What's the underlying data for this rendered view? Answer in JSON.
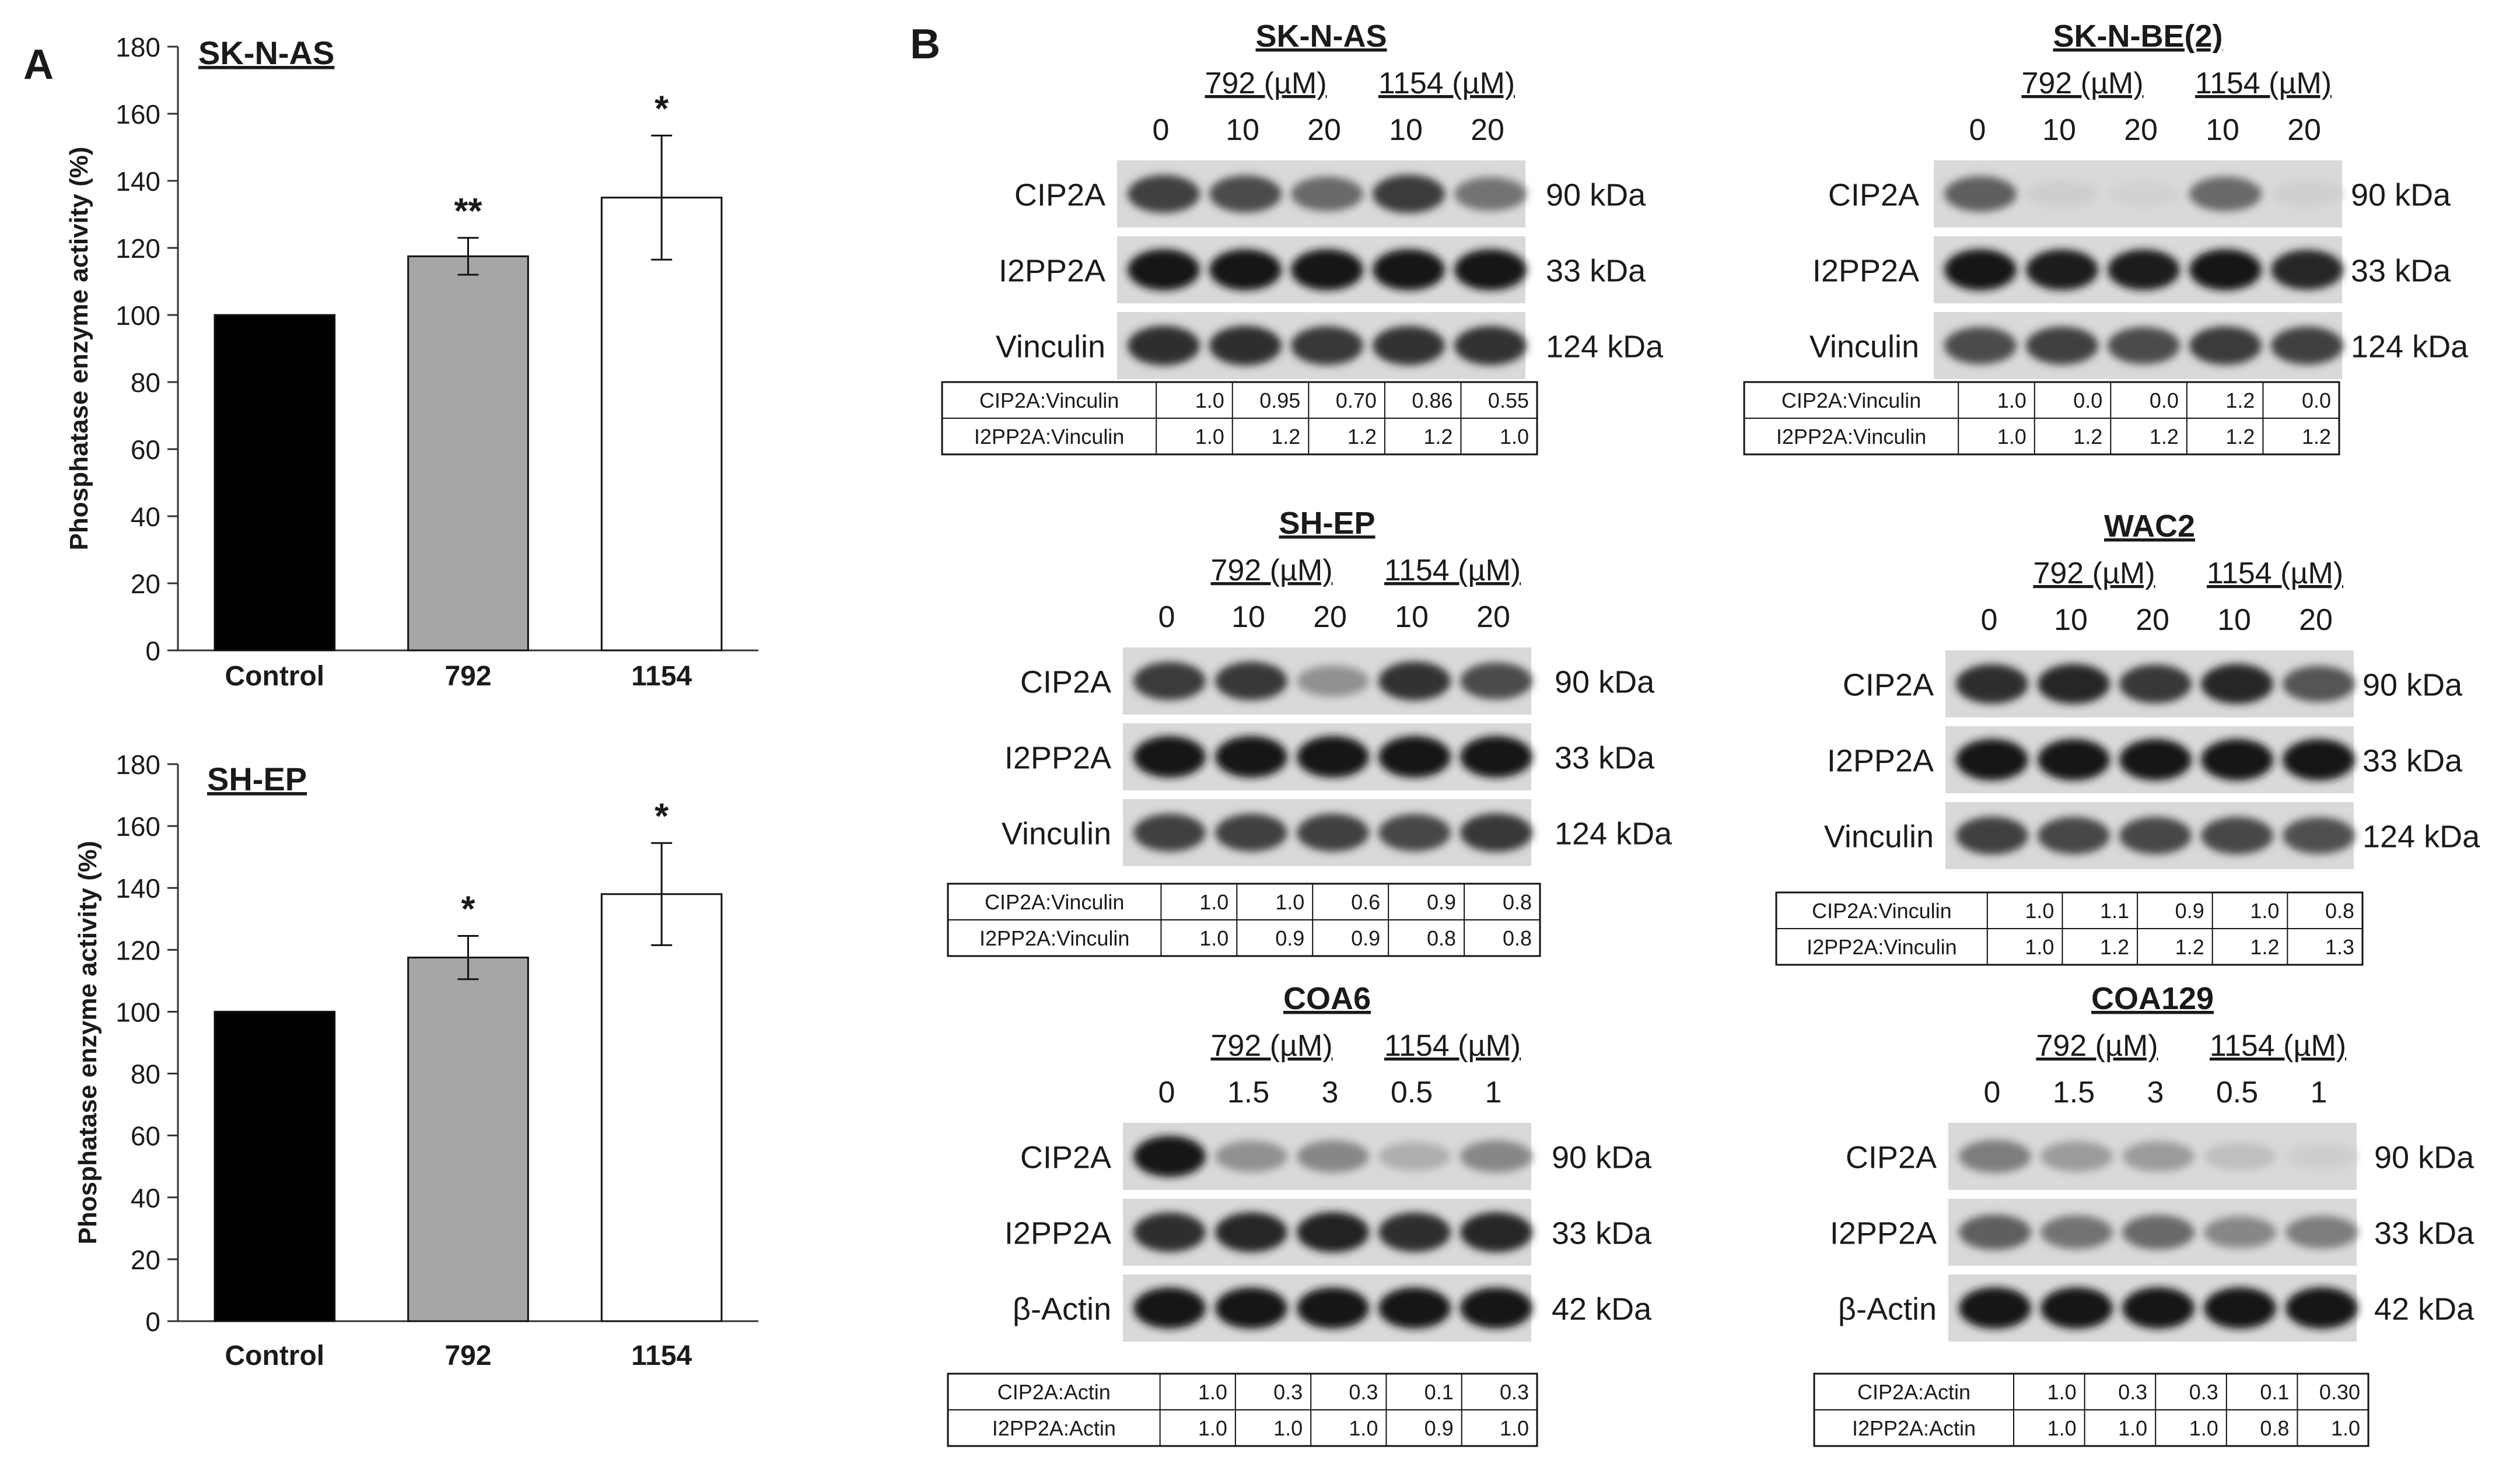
{
  "panel_a": {
    "label": "A"
  },
  "panel_b": {
    "label": "B"
  },
  "chart_data": [
    {
      "type": "bar",
      "title": "SK-N-AS",
      "ylabel": "Phosphatase enzyme activity (%)",
      "xlabel": "",
      "categories": [
        "Control",
        "792",
        "1154"
      ],
      "values": [
        100,
        117.5,
        135
      ],
      "errors": [
        0.5,
        5.5,
        18.5
      ],
      "significance": [
        "",
        "**",
        "*"
      ],
      "bar_colors": [
        "#000000",
        "#a6a6a6",
        "#ffffff"
      ],
      "ylim": [
        0,
        180
      ],
      "yticks": [
        0,
        20,
        40,
        60,
        80,
        100,
        120,
        140,
        160,
        180
      ]
    },
    {
      "type": "bar",
      "title": "SH-EP",
      "ylabel": "Phosphatase enzyme activity (%)",
      "xlabel": "",
      "categories": [
        "Control",
        "792",
        "1154"
      ],
      "values": [
        100,
        117.5,
        138
      ],
      "errors": [
        0.5,
        7,
        16.5
      ],
      "significance": [
        "",
        "*",
        "*"
      ],
      "bar_colors": [
        "#000000",
        "#a6a6a6",
        "#ffffff"
      ],
      "ylim": [
        0,
        180
      ],
      "yticks": [
        0,
        20,
        40,
        60,
        80,
        100,
        120,
        140,
        160,
        180
      ]
    }
  ],
  "blots": [
    {
      "title": "SK-N-AS",
      "group_labels": [
        "792 (µM)",
        "1154 (µM)"
      ],
      "lanes": [
        "0",
        "10",
        "20",
        "10",
        "20"
      ],
      "rows": [
        {
          "protein": "CIP2A",
          "kda": "90 kDa",
          "intensity": [
            0.75,
            0.7,
            0.55,
            0.78,
            0.5
          ]
        },
        {
          "protein": "I2PP2A",
          "kda": "33 kDa",
          "intensity": [
            0.95,
            0.95,
            0.95,
            0.95,
            0.95
          ]
        },
        {
          "protein": "Vinculin",
          "kda": "124 kDa",
          "intensity": [
            0.85,
            0.85,
            0.8,
            0.82,
            0.82
          ]
        }
      ],
      "table": [
        {
          "label": "CIP2A:Vinculin",
          "values": [
            "1.0",
            "0.95",
            "0.70",
            "0.86",
            "0.55"
          ]
        },
        {
          "label": "I2PP2A:Vinculin",
          "values": [
            "1.0",
            "1.2",
            "1.2",
            "1.2",
            "1.0"
          ]
        }
      ]
    },
    {
      "title": "SK-N-BE(2)",
      "group_labels": [
        "792 (µM)",
        "1154 (µM)"
      ],
      "lanes": [
        "0",
        "10",
        "20",
        "10",
        "20"
      ],
      "rows": [
        {
          "protein": "CIP2A",
          "kda": "90 kDa",
          "intensity": [
            0.6,
            0.05,
            0.03,
            0.55,
            0.04
          ]
        },
        {
          "protein": "I2PP2A",
          "kda": "33 kDa",
          "intensity": [
            0.95,
            0.92,
            0.92,
            0.95,
            0.88
          ]
        },
        {
          "protein": "Vinculin",
          "kda": "124 kDa",
          "intensity": [
            0.7,
            0.75,
            0.7,
            0.78,
            0.75
          ]
        }
      ],
      "table": [
        {
          "label": "CIP2A:Vinculin",
          "values": [
            "1.0",
            "0.0",
            "0.0",
            "1.2",
            "0.0"
          ]
        },
        {
          "label": "I2PP2A:Vinculin",
          "values": [
            "1.0",
            "1.2",
            "1.2",
            "1.2",
            "1.2"
          ]
        }
      ]
    },
    {
      "title": "SH-EP",
      "group_labels": [
        "792 (µM)",
        "1154 (µM)"
      ],
      "lanes": [
        "0",
        "10",
        "20",
        "10",
        "20"
      ],
      "rows": [
        {
          "protein": "CIP2A",
          "kda": "90 kDa",
          "intensity": [
            0.78,
            0.8,
            0.35,
            0.82,
            0.7
          ]
        },
        {
          "protein": "I2PP2A",
          "kda": "33 kDa",
          "intensity": [
            0.98,
            0.98,
            0.98,
            0.98,
            0.98
          ]
        },
        {
          "protein": "Vinculin",
          "kda": "124 kDa",
          "intensity": [
            0.75,
            0.75,
            0.75,
            0.72,
            0.8
          ]
        }
      ],
      "table": [
        {
          "label": "CIP2A:Vinculin",
          "values": [
            "1.0",
            "1.0",
            "0.6",
            "0.9",
            "0.8"
          ]
        },
        {
          "label": "I2PP2A:Vinculin",
          "values": [
            "1.0",
            "0.9",
            "0.9",
            "0.8",
            "0.8"
          ]
        }
      ]
    },
    {
      "title": "WAC2",
      "group_labels": [
        "792 (µM)",
        "1154 (µM)"
      ],
      "lanes": [
        "0",
        "10",
        "20",
        "10",
        "20"
      ],
      "rows": [
        {
          "protein": "CIP2A",
          "kda": "90 kDa",
          "intensity": [
            0.85,
            0.88,
            0.8,
            0.88,
            0.65
          ]
        },
        {
          "protein": "I2PP2A",
          "kda": "33 kDa",
          "intensity": [
            0.97,
            0.97,
            0.97,
            0.97,
            0.97
          ]
        },
        {
          "protein": "Vinculin",
          "kda": "124 kDa",
          "intensity": [
            0.75,
            0.72,
            0.72,
            0.72,
            0.68
          ]
        }
      ],
      "table": [
        {
          "label": "CIP2A:Vinculin",
          "values": [
            "1.0",
            "1.1",
            "0.9",
            "1.0",
            "0.8"
          ]
        },
        {
          "label": "I2PP2A:Vinculin",
          "values": [
            "1.0",
            "1.2",
            "1.2",
            "1.2",
            "1.3"
          ]
        }
      ]
    },
    {
      "title": "COA6",
      "group_labels": [
        "792 (µM)",
        "1154 (µM)"
      ],
      "lanes": [
        "0",
        "1.5",
        "3",
        "0.5",
        "1"
      ],
      "rows": [
        {
          "protein": "CIP2A",
          "kda": "90 kDa",
          "intensity": [
            0.95,
            0.35,
            0.4,
            0.2,
            0.4
          ]
        },
        {
          "protein": "I2PP2A",
          "kda": "33 kDa",
          "intensity": [
            0.85,
            0.88,
            0.9,
            0.85,
            0.88
          ]
        },
        {
          "protein": "β-Actin",
          "kda": "42 kDa",
          "intensity": [
            0.95,
            0.95,
            0.95,
            0.95,
            0.95
          ]
        }
      ],
      "table": [
        {
          "label": "CIP2A:Actin",
          "values": [
            "1.0",
            "0.3",
            "0.3",
            "0.1",
            "0.3"
          ]
        },
        {
          "label": "I2PP2A:Actin",
          "values": [
            "1.0",
            "1.0",
            "1.0",
            "0.9",
            "1.0"
          ]
        }
      ]
    },
    {
      "title": "COA129",
      "group_labels": [
        "792 (µM)",
        "1154 (µM)"
      ],
      "lanes": [
        "0",
        "1.5",
        "3",
        "0.5",
        "1"
      ],
      "rows": [
        {
          "protein": "CIP2A",
          "kda": "90 kDa",
          "intensity": [
            0.45,
            0.3,
            0.3,
            0.12,
            0.05
          ]
        },
        {
          "protein": "I2PP2A",
          "kda": "33 kDa",
          "intensity": [
            0.6,
            0.5,
            0.55,
            0.4,
            0.45
          ]
        },
        {
          "protein": "β-Actin",
          "kda": "42 kDa",
          "intensity": [
            0.97,
            0.97,
            0.97,
            0.97,
            0.97
          ]
        }
      ],
      "table": [
        {
          "label": "CIP2A:Actin",
          "values": [
            "1.0",
            "0.3",
            "0.3",
            "0.1",
            "0.30"
          ]
        },
        {
          "label": "I2PP2A:Actin",
          "values": [
            "1.0",
            "1.0",
            "1.0",
            "0.8",
            "1.0"
          ]
        }
      ]
    }
  ]
}
